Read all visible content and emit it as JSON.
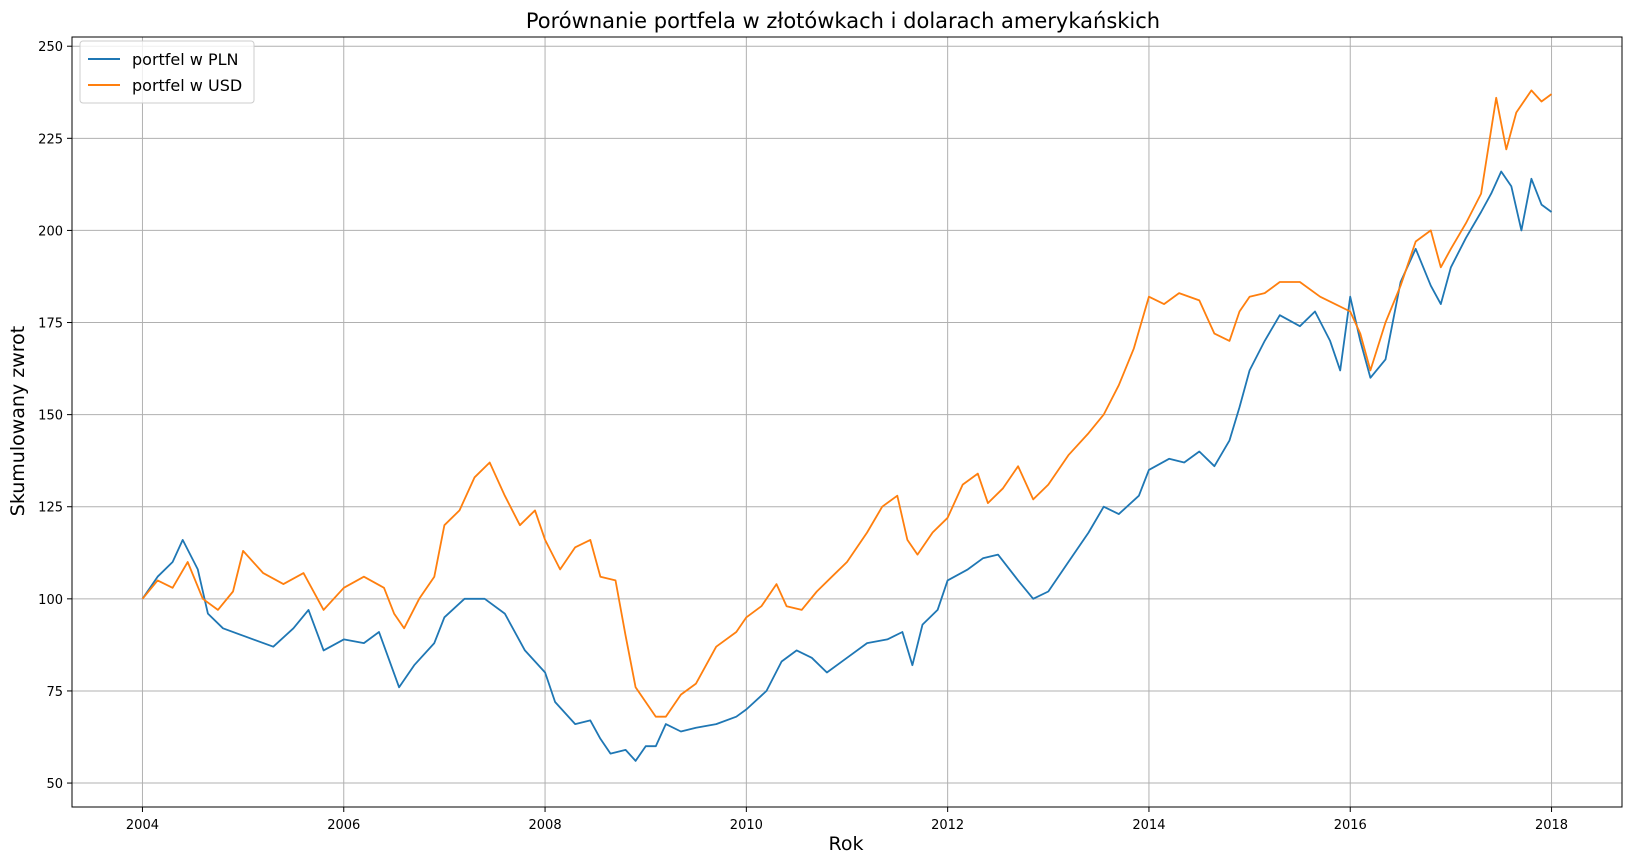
{
  "chart_data": {
    "type": "line",
    "title": "Porównanie portfela w złotówkach i dolarach amerykańskich",
    "xlabel": "Rok",
    "ylabel": "Skumulowany zwrot",
    "xlim": [
      2003.3,
      2018.7
    ],
    "ylim": [
      43.5,
      252.5
    ],
    "x_ticks": [
      2004,
      2006,
      2008,
      2010,
      2012,
      2014,
      2016,
      2018
    ],
    "x_tick_labels": [
      "2004",
      "2006",
      "2008",
      "2010",
      "2012",
      "2014",
      "2016",
      "2018"
    ],
    "y_ticks": [
      50,
      75,
      100,
      125,
      150,
      175,
      200,
      225,
      250
    ],
    "y_tick_labels": [
      "50",
      "75",
      "100",
      "125",
      "150",
      "175",
      "200",
      "225",
      "250"
    ],
    "grid": true,
    "legend_position": "top-left",
    "series": [
      {
        "name": "portfel w PLN",
        "color": "#1f77b4",
        "x": [
          2004.0,
          2004.15,
          2004.3,
          2004.4,
          2004.55,
          2004.65,
          2004.8,
          2005.0,
          2005.3,
          2005.5,
          2005.65,
          2005.8,
          2006.0,
          2006.2,
          2006.35,
          2006.55,
          2006.7,
          2006.9,
          2007.0,
          2007.2,
          2007.4,
          2007.6,
          2007.8,
          2008.0,
          2008.1,
          2008.3,
          2008.45,
          2008.55,
          2008.65,
          2008.8,
          2008.9,
          2009.0,
          2009.1,
          2009.2,
          2009.35,
          2009.5,
          2009.7,
          2009.9,
          2010.0,
          2010.2,
          2010.35,
          2010.5,
          2010.65,
          2010.8,
          2011.0,
          2011.2,
          2011.4,
          2011.55,
          2011.65,
          2011.75,
          2011.9,
          2012.0,
          2012.2,
          2012.35,
          2012.5,
          2012.7,
          2012.85,
          2013.0,
          2013.2,
          2013.4,
          2013.55,
          2013.7,
          2013.9,
          2014.0,
          2014.2,
          2014.35,
          2014.5,
          2014.65,
          2014.8,
          2014.9,
          2015.0,
          2015.15,
          2015.3,
          2015.5,
          2015.65,
          2015.8,
          2015.9,
          2016.0,
          2016.1,
          2016.2,
          2016.35,
          2016.5,
          2016.65,
          2016.8,
          2016.9,
          2017.0,
          2017.15,
          2017.3,
          2017.4,
          2017.5,
          2017.6,
          2017.7,
          2017.8,
          2017.9,
          2018.0
        ],
        "values": [
          100,
          106,
          110,
          116,
          108,
          96,
          92,
          90,
          87,
          92,
          97,
          86,
          89,
          88,
          91,
          76,
          82,
          88,
          95,
          100,
          100,
          96,
          86,
          80,
          72,
          66,
          67,
          62,
          58,
          59,
          56,
          60,
          60,
          66,
          64,
          65,
          66,
          68,
          70,
          75,
          83,
          86,
          84,
          80,
          84,
          88,
          89,
          91,
          82,
          93,
          97,
          105,
          108,
          111,
          112,
          105,
          100,
          102,
          110,
          118,
          125,
          123,
          128,
          135,
          138,
          137,
          140,
          136,
          143,
          152,
          162,
          170,
          177,
          174,
          178,
          170,
          162,
          182,
          170,
          160,
          165,
          186,
          195,
          185,
          180,
          190,
          198,
          205,
          210,
          216,
          212,
          200,
          214,
          207,
          205
        ]
      },
      {
        "name": "portfel w USD",
        "color": "#ff7f0e",
        "x": [
          2004.0,
          2004.15,
          2004.3,
          2004.45,
          2004.6,
          2004.75,
          2004.9,
          2005.0,
          2005.2,
          2005.4,
          2005.6,
          2005.8,
          2006.0,
          2006.2,
          2006.4,
          2006.5,
          2006.6,
          2006.75,
          2006.9,
          2007.0,
          2007.15,
          2007.3,
          2007.45,
          2007.6,
          2007.75,
          2007.9,
          2008.0,
          2008.15,
          2008.3,
          2008.45,
          2008.55,
          2008.7,
          2008.8,
          2008.9,
          2009.0,
          2009.1,
          2009.2,
          2009.35,
          2009.5,
          2009.7,
          2009.9,
          2010.0,
          2010.15,
          2010.3,
          2010.4,
          2010.55,
          2010.7,
          2010.85,
          2011.0,
          2011.2,
          2011.35,
          2011.5,
          2011.6,
          2011.7,
          2011.85,
          2012.0,
          2012.15,
          2012.3,
          2012.4,
          2012.55,
          2012.7,
          2012.85,
          2013.0,
          2013.2,
          2013.4,
          2013.55,
          2013.7,
          2013.85,
          2014.0,
          2014.15,
          2014.3,
          2014.5,
          2014.65,
          2014.8,
          2014.9,
          2015.0,
          2015.15,
          2015.3,
          2015.5,
          2015.7,
          2015.85,
          2016.0,
          2016.1,
          2016.2,
          2016.35,
          2016.5,
          2016.65,
          2016.8,
          2016.9,
          2017.0,
          2017.15,
          2017.3,
          2017.45,
          2017.55,
          2017.65,
          2017.8,
          2017.9,
          2018.0
        ],
        "values": [
          100,
          105,
          103,
          110,
          100,
          97,
          102,
          113,
          107,
          104,
          107,
          97,
          103,
          106,
          103,
          96,
          92,
          100,
          106,
          120,
          124,
          133,
          137,
          128,
          120,
          124,
          116,
          108,
          114,
          116,
          106,
          105,
          90,
          76,
          72,
          68,
          68,
          74,
          77,
          87,
          91,
          95,
          98,
          104,
          98,
          97,
          102,
          106,
          110,
          118,
          125,
          128,
          116,
          112,
          118,
          122,
          131,
          134,
          126,
          130,
          136,
          127,
          131,
          139,
          145,
          150,
          158,
          168,
          182,
          180,
          183,
          181,
          172,
          170,
          178,
          182,
          183,
          186,
          186,
          182,
          180,
          178,
          172,
          162,
          175,
          185,
          197,
          200,
          190,
          195,
          202,
          210,
          236,
          222,
          232,
          238,
          235,
          237
        ]
      }
    ]
  }
}
